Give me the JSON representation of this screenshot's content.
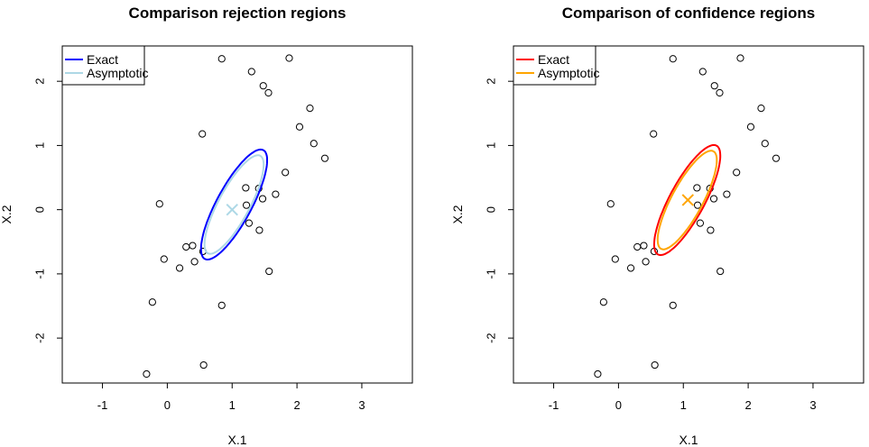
{
  "chart_data": [
    {
      "type": "scatter",
      "title": "Comparison rejection regions",
      "xlabel": "X.1",
      "ylabel": "X.2",
      "xlim": [
        -1.62,
        3.78
      ],
      "ylim": [
        -2.7,
        2.55
      ],
      "xticks": [
        -1,
        0,
        1,
        2,
        3
      ],
      "yticks": [
        -2,
        -1,
        0,
        1,
        2
      ],
      "points": [
        [
          0.84,
          2.35
        ],
        [
          1.88,
          2.36
        ],
        [
          1.3,
          2.15
        ],
        [
          1.48,
          1.93
        ],
        [
          1.56,
          1.82
        ],
        [
          2.2,
          1.58
        ],
        [
          2.04,
          1.29
        ],
        [
          2.26,
          1.03
        ],
        [
          2.43,
          0.8
        ],
        [
          0.54,
          1.18
        ],
        [
          1.82,
          0.58
        ],
        [
          1.21,
          0.34
        ],
        [
          1.41,
          0.33
        ],
        [
          1.67,
          0.24
        ],
        [
          1.47,
          0.17
        ],
        [
          -0.12,
          0.09
        ],
        [
          1.22,
          0.07
        ],
        [
          1.26,
          -0.21
        ],
        [
          1.42,
          -0.32
        ],
        [
          0.29,
          -0.58
        ],
        [
          0.39,
          -0.56
        ],
        [
          0.55,
          -0.65
        ],
        [
          -0.05,
          -0.77
        ],
        [
          0.42,
          -0.81
        ],
        [
          0.19,
          -0.91
        ],
        [
          1.57,
          -0.96
        ],
        [
          -0.23,
          -1.44
        ],
        [
          0.84,
          -1.49
        ],
        [
          0.56,
          -2.42
        ],
        [
          -0.32,
          -2.56
        ]
      ],
      "center_marker": {
        "x": 1.0,
        "y": 0.0,
        "color": "#ADD8E6"
      },
      "series": [
        {
          "name": "Exact",
          "color": "#0000FF",
          "ellipse": {
            "cx": 1.03,
            "cy": 0.08,
            "a": 0.96,
            "b": 0.27,
            "angle_deg": 62
          }
        },
        {
          "name": "Asymptotic",
          "color": "#ADD8E6",
          "ellipse": {
            "cx": 1.03,
            "cy": 0.08,
            "a": 0.86,
            "b": 0.24,
            "angle_deg": 62
          }
        }
      ],
      "legend_position": "top-left"
    },
    {
      "type": "scatter",
      "title": "Comparison of confidence regions",
      "xlabel": "X.1",
      "ylabel": "X.2",
      "xlim": [
        -1.62,
        3.78
      ],
      "ylim": [
        -2.7,
        2.55
      ],
      "xticks": [
        -1,
        0,
        1,
        2,
        3
      ],
      "yticks": [
        -2,
        -1,
        0,
        1,
        2
      ],
      "points": [
        [
          0.84,
          2.35
        ],
        [
          1.88,
          2.36
        ],
        [
          1.3,
          2.15
        ],
        [
          1.48,
          1.93
        ],
        [
          1.56,
          1.82
        ],
        [
          2.2,
          1.58
        ],
        [
          2.04,
          1.29
        ],
        [
          2.26,
          1.03
        ],
        [
          2.43,
          0.8
        ],
        [
          0.54,
          1.18
        ],
        [
          1.82,
          0.58
        ],
        [
          1.21,
          0.34
        ],
        [
          1.41,
          0.33
        ],
        [
          1.67,
          0.24
        ],
        [
          1.47,
          0.17
        ],
        [
          -0.12,
          0.09
        ],
        [
          1.22,
          0.07
        ],
        [
          1.26,
          -0.21
        ],
        [
          1.42,
          -0.32
        ],
        [
          0.29,
          -0.58
        ],
        [
          0.39,
          -0.56
        ],
        [
          0.55,
          -0.65
        ],
        [
          -0.05,
          -0.77
        ],
        [
          0.42,
          -0.81
        ],
        [
          0.19,
          -0.91
        ],
        [
          1.57,
          -0.96
        ],
        [
          -0.23,
          -1.44
        ],
        [
          0.84,
          -1.49
        ],
        [
          0.56,
          -2.42
        ],
        [
          -0.32,
          -2.56
        ]
      ],
      "center_marker": {
        "x": 1.07,
        "y": 0.15,
        "color": "#FFA500"
      },
      "series": [
        {
          "name": "Exact",
          "color": "#FF0000",
          "ellipse": {
            "cx": 1.06,
            "cy": 0.15,
            "a": 0.96,
            "b": 0.27,
            "angle_deg": 62
          }
        },
        {
          "name": "Asymptotic",
          "color": "#FFA500",
          "ellipse": {
            "cx": 1.06,
            "cy": 0.15,
            "a": 0.86,
            "b": 0.24,
            "angle_deg": 62
          }
        }
      ],
      "legend_position": "top-left"
    }
  ]
}
